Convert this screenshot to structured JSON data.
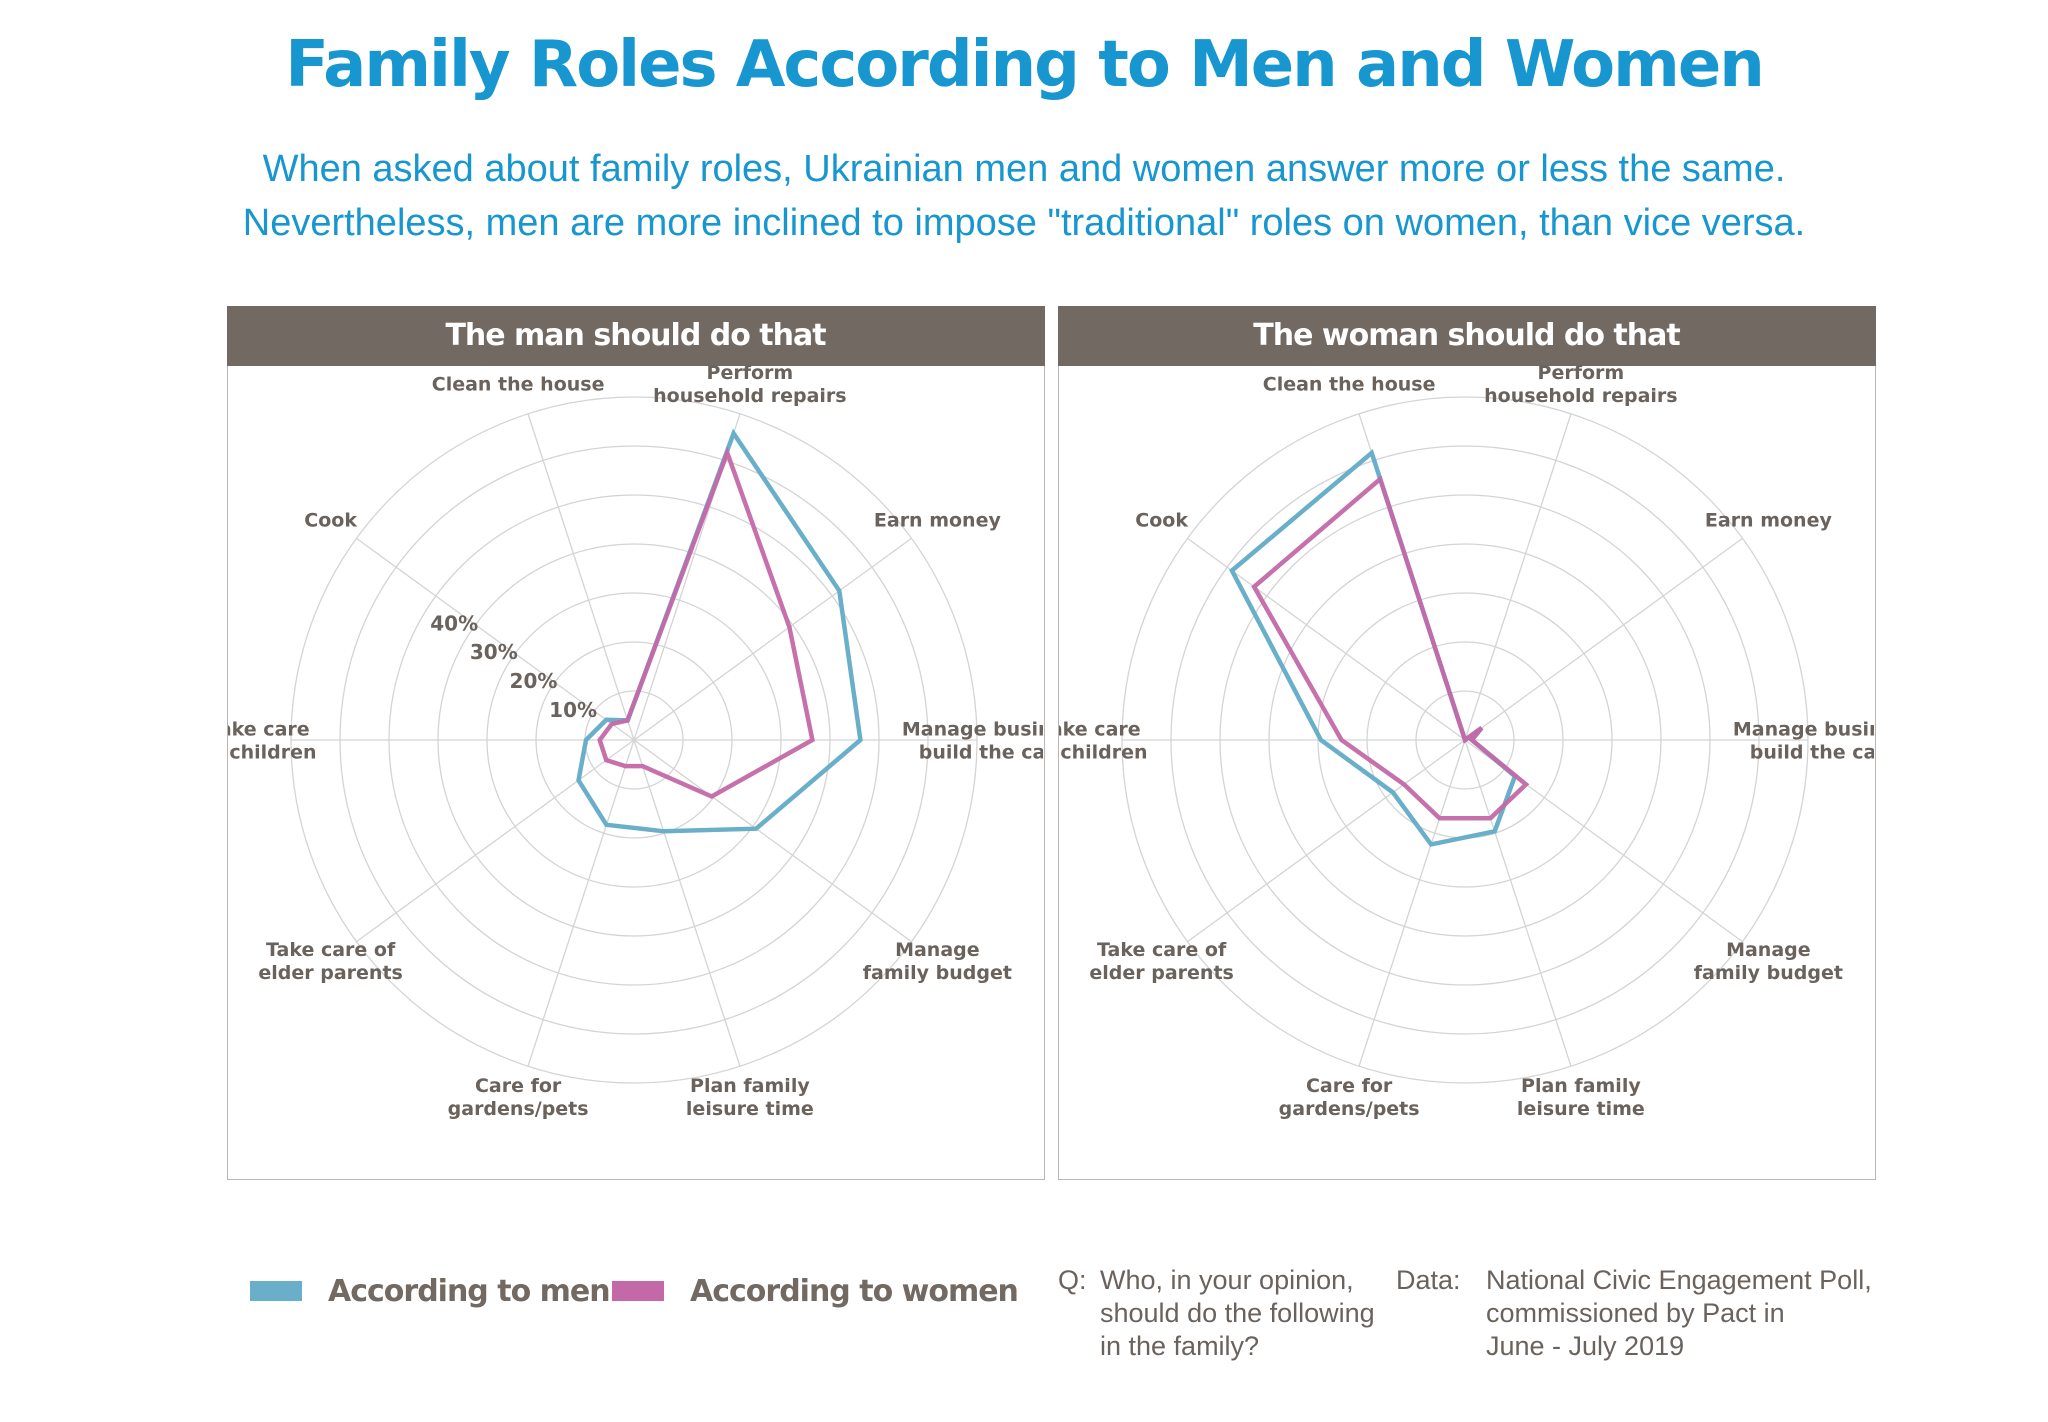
{
  "title": "Family Roles According to Men and Women",
  "subtitle": [
    "When asked about family roles, Ukrainian men and women answer more or less the same.",
    "Nevertheless, men are more inclined to impose \"traditional\" roles on women, than vice versa."
  ],
  "colors": {
    "men": "#6aafca",
    "women": "#c469a8",
    "header": "#726962",
    "title": "#1796cf",
    "grid": "#d4d4d4",
    "label": "#6a625c"
  },
  "chart_data": [
    {
      "type": "radar",
      "title": "The man should do that",
      "categories": [
        [
          "Perform",
          "household repairs"
        ],
        [
          "Earn money"
        ],
        [
          "Manage business or",
          "build the carreer"
        ],
        [
          "Manage",
          "family budget"
        ],
        [
          "Plan family",
          "leisure time"
        ],
        [
          "Care for",
          "gardens/pets"
        ],
        [
          "Take care of",
          "elder parents"
        ],
        [
          "Take care",
          "of children"
        ],
        [
          "Cook"
        ],
        [
          "Clean the house"
        ]
      ],
      "radial_ticks": [
        "10%",
        "20%",
        "30%",
        "40%"
      ],
      "rmax": 50,
      "grid": true,
      "series": [
        {
          "name": "According to men",
          "color": "#6aafca",
          "values": [
            47,
            37,
            33,
            22,
            14,
            13,
            10,
            7,
            5,
            3
          ]
        },
        {
          "name": "According to women",
          "color": "#c469a8",
          "values": [
            44,
            28,
            26,
            14,
            4,
            4,
            5,
            5,
            4,
            3
          ]
        }
      ]
    },
    {
      "type": "radar",
      "title": "The woman should do that",
      "categories": [
        [
          "Perform",
          "household repairs"
        ],
        [
          "Earn money"
        ],
        [
          "Manage business or",
          "build the carreer"
        ],
        [
          "Manage",
          "family budget"
        ],
        [
          "Plan family",
          "leisure time"
        ],
        [
          "Care for",
          "gardens/pets"
        ],
        [
          "Take care of",
          "elder parents"
        ],
        [
          "Take care",
          "of children"
        ],
        [
          "Cook"
        ],
        [
          "Clean the house"
        ]
      ],
      "radial_ticks": [
        "10%",
        "20%",
        "30%",
        "40%"
      ],
      "rmax": 50,
      "grid": true,
      "series": [
        {
          "name": "According to men",
          "color": "#6aafca",
          "values": [
            0,
            3,
            1,
            9,
            14,
            16,
            13,
            21,
            42,
            44
          ]
        },
        {
          "name": "According to women",
          "color": "#c469a8",
          "values": [
            0,
            3,
            1,
            11,
            12,
            12,
            11,
            18,
            38,
            40
          ]
        }
      ]
    }
  ],
  "legend": [
    {
      "label": "According to men",
      "color": "#6aafca"
    },
    {
      "label": "According to women",
      "color": "#c469a8"
    }
  ],
  "question": {
    "prefix": "Q:",
    "lines": [
      "Who, in your opinion,",
      "should do the following",
      "in the family?"
    ]
  },
  "data_source": {
    "prefix": "Data:",
    "lines": [
      "National Civic Engagement Poll,",
      "commissioned by Pact  in",
      "June - July 2019"
    ]
  }
}
